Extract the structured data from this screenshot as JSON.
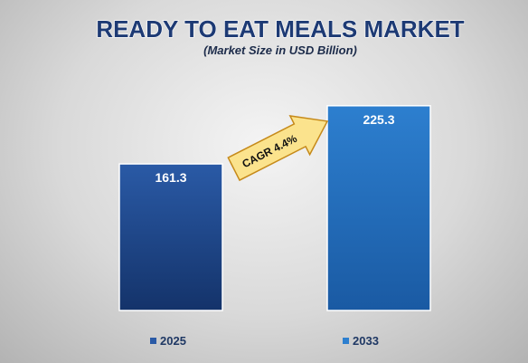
{
  "chart_data": {
    "type": "bar",
    "title": "READY TO EAT MEALS MARKET",
    "subtitle": "(Market Size in USD Billion)",
    "categories": [
      "2025",
      "2033"
    ],
    "values": [
      161.3,
      225.3
    ],
    "ylim": [
      0,
      250
    ],
    "grid": false,
    "legend": {
      "placement": "bottom",
      "entries": [
        "2025",
        "2033"
      ]
    },
    "annotation": "CAGR 4.4%",
    "colors": {
      "bar_2025_top": "#2a5aa6",
      "bar_2025_bottom": "#14336a",
      "bar_2033_top": "#2d7fcf",
      "bar_2033_bottom": "#1a5aa3",
      "title": "#1d3a74",
      "arrow_fill": "#fbe38d",
      "arrow_stroke": "#c68a1a"
    }
  }
}
